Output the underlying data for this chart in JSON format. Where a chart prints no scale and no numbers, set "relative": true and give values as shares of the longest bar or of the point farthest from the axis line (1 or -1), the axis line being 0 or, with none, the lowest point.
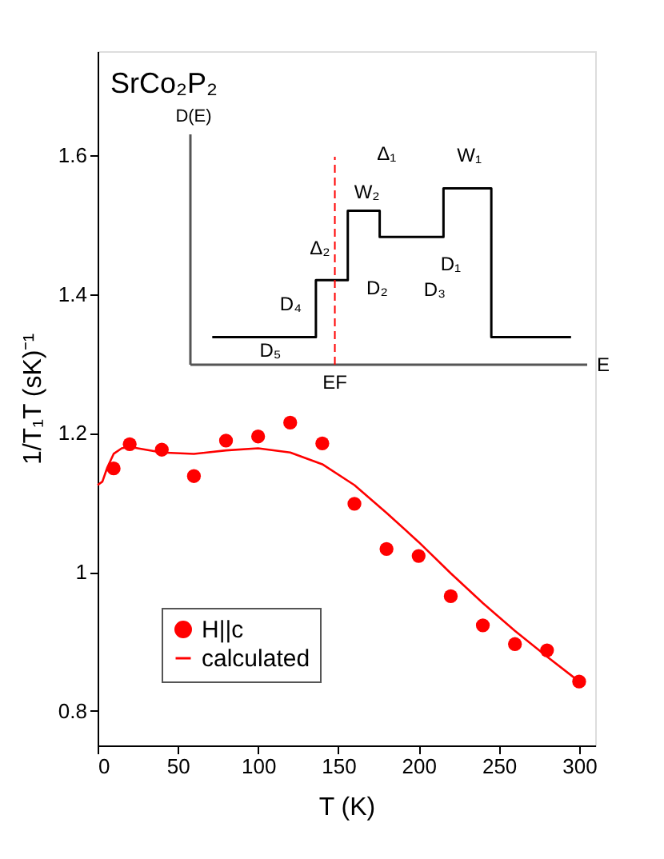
{
  "chart_data": [
    {
      "type": "scatter",
      "title": "SrCo₂P₂",
      "xlabel": "T  (K)",
      "ylabel": "1/T₁T  (sK)⁻¹",
      "xlim": [
        0,
        310
      ],
      "ylim": [
        0.75,
        1.75
      ],
      "xticks": [
        0,
        50,
        100,
        150,
        200,
        250,
        300
      ],
      "yticks": [
        0.8,
        1,
        1.2,
        1.4,
        1.6
      ],
      "legend": "bottom left",
      "series": [
        {
          "name": "H||c",
          "type": "scatter",
          "marker": "circle",
          "color": "#ff0000",
          "x": [
            10,
            20,
            40,
            60,
            80,
            100,
            120,
            140,
            160,
            180,
            200,
            220,
            240,
            260,
            280,
            300
          ],
          "values": [
            1.149,
            1.184,
            1.176,
            1.138,
            1.189,
            1.195,
            1.215,
            1.185,
            1.098,
            1.033,
            1.023,
            0.965,
            0.923,
            0.896,
            0.887,
            0.842
          ]
        },
        {
          "name": "calculated",
          "type": "line",
          "marker": "none",
          "line_style": "solid",
          "color": "#ff0000",
          "x": [
            0,
            3,
            6,
            10,
            15,
            20,
            30,
            40,
            60,
            80,
            100,
            120,
            140,
            160,
            180,
            200,
            220,
            240,
            260,
            280,
            300
          ],
          "values": [
            1.125,
            1.13,
            1.15,
            1.17,
            1.178,
            1.18,
            1.176,
            1.172,
            1.17,
            1.175,
            1.178,
            1.172,
            1.155,
            1.125,
            1.085,
            1.043,
            0.998,
            0.955,
            0.915,
            0.878,
            0.842
          ]
        }
      ]
    },
    {
      "type": "step",
      "relative": true,
      "xlabel": "E",
      "ylabel": "D(E)",
      "color": "#000000",
      "categories": [
        null,
        null,
        null,
        null,
        null,
        null,
        null,
        null,
        null,
        null,
        null,
        null,
        null,
        null,
        null,
        null,
        null,
        null,
        null,
        null,
        null,
        null,
        null,
        null,
        null,
        null,
        null,
        null,
        null,
        null,
        null,
        null,
        null,
        null,
        null,
        null,
        null,
        null,
        null,
        null,
        null,
        null,
        null,
        null,
        null,
        null
      ],
      "values": [
        0.157,
        0.157,
        0.157,
        0.157,
        0.157,
        0.157,
        0.157,
        0.157,
        0.157,
        0.157,
        0.157,
        0.157,
        0.157,
        0.48,
        0.48,
        0.48,
        0.48,
        0.873,
        0.873,
        0.873,
        0.873,
        0.725,
        0.725,
        0.725,
        0.725,
        0.725,
        0.725,
        0.725,
        0.725,
        1,
        1,
        1,
        1,
        1,
        1,
        0.157,
        0.157,
        0.157,
        0.157,
        0.157,
        0.157,
        0.157,
        0.157,
        0.157,
        0.157,
        0.157
      ],
      "annotations": [
        "Δ₁",
        "W₁",
        "W₂",
        "Δ₂",
        "D₁",
        "D₂",
        "D₃",
        "D₄",
        "D₅",
        "EF"
      ]
    }
  ]
}
